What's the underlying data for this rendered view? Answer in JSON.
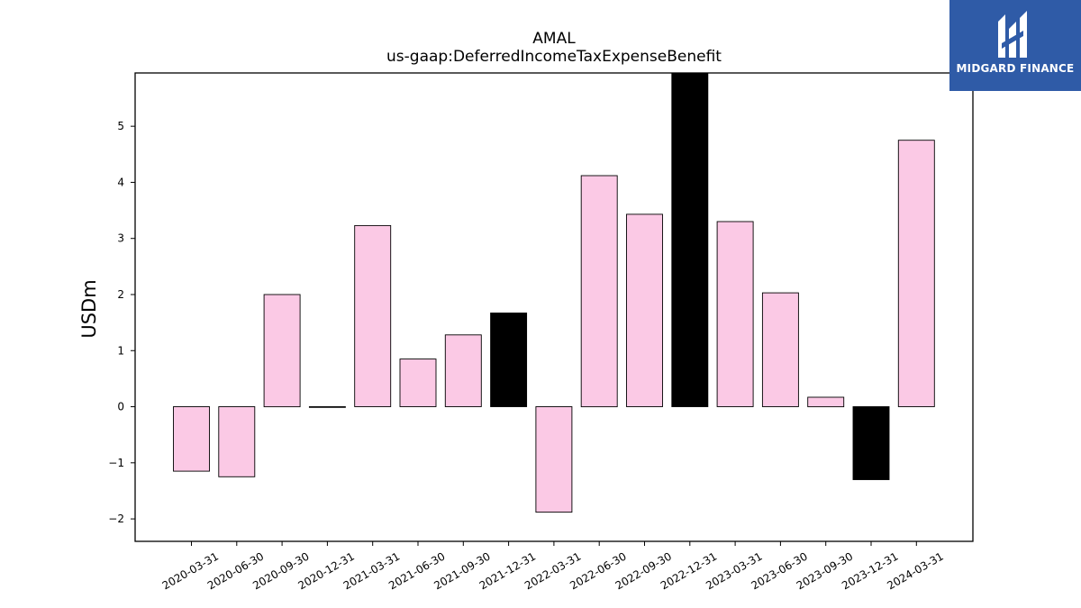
{
  "brand": {
    "name": "MIDGARD FINANCE",
    "background": "#2f5ba7"
  },
  "chart_data": {
    "type": "bar",
    "title": "AMAL",
    "subtitle": "us-gaap:DeferredIncomeTaxExpenseBenefit",
    "xlabel": "",
    "ylabel": "USDm",
    "ylim": [
      -2.4,
      5.95
    ],
    "yticks": [
      -2,
      -1,
      0,
      1,
      2,
      3,
      4,
      5
    ],
    "ytick_labels": [
      "−2",
      "−1",
      "0",
      "1",
      "2",
      "3",
      "4",
      "5"
    ],
    "grid": false,
    "categories": [
      "2020-03-31",
      "2020-06-30",
      "2020-09-30",
      "2020-12-31",
      "2021-03-31",
      "2021-06-30",
      "2021-09-30",
      "2021-12-31",
      "2022-03-31",
      "2022-06-30",
      "2022-09-30",
      "2022-12-31",
      "2023-03-31",
      "2023-06-30",
      "2023-09-30",
      "2023-12-31",
      "2024-03-31"
    ],
    "values": [
      -1.15,
      -1.25,
      2.0,
      0.0,
      3.23,
      0.85,
      1.28,
      1.67,
      -1.88,
      4.12,
      3.43,
      5.95,
      3.3,
      2.03,
      0.17,
      -1.3,
      4.75
    ],
    "colors": {
      "default": "#fbc9e5",
      "highlight": "#000000",
      "edge": "#000000"
    },
    "highlighted": [
      "2021-12-31",
      "2022-12-31",
      "2023-12-31"
    ]
  }
}
